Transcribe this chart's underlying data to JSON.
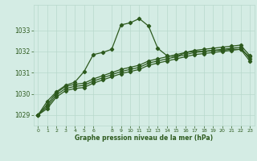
{
  "background_color": "#d4ece4",
  "grid_color": "#b8d8cc",
  "line_color": "#2d5a1e",
  "title": "Graphe pression niveau de la mer (hPa)",
  "xlim": [
    -0.5,
    23.5
  ],
  "ylim": [
    1028.5,
    1034.2
  ],
  "yticks": [
    1029,
    1030,
    1031,
    1032,
    1033
  ],
  "xticks": [
    0,
    1,
    2,
    3,
    4,
    5,
    6,
    8,
    9,
    10,
    11,
    12,
    13,
    14,
    15,
    16,
    17,
    18,
    19,
    20,
    21,
    22,
    23
  ],
  "x": [
    0,
    1,
    2,
    3,
    4,
    5,
    6,
    7,
    8,
    9,
    10,
    11,
    12,
    13,
    14,
    15,
    16,
    17,
    18,
    19,
    20,
    21,
    22,
    23
  ],
  "series_main": [
    1029.0,
    1029.65,
    1030.1,
    1030.4,
    1030.55,
    1031.05,
    1031.85,
    1031.95,
    1032.1,
    1033.25,
    1033.35,
    1033.55,
    1033.2,
    1032.15,
    1031.8,
    1031.75,
    1031.95,
    1032.0,
    1032.0,
    1032.05,
    1032.05,
    1032.1,
    1032.1,
    1031.75
  ],
  "series2": [
    1029.0,
    1029.5,
    1030.05,
    1030.35,
    1030.45,
    1030.5,
    1030.7,
    1030.85,
    1031.0,
    1031.15,
    1031.25,
    1031.35,
    1031.55,
    1031.65,
    1031.75,
    1031.85,
    1031.95,
    1032.05,
    1032.1,
    1032.15,
    1032.2,
    1032.25,
    1032.3,
    1031.8
  ],
  "series3": [
    1029.0,
    1029.4,
    1029.95,
    1030.25,
    1030.35,
    1030.4,
    1030.6,
    1030.75,
    1030.9,
    1031.05,
    1031.15,
    1031.25,
    1031.45,
    1031.55,
    1031.65,
    1031.75,
    1031.85,
    1031.95,
    1032.0,
    1032.05,
    1032.1,
    1032.15,
    1032.2,
    1031.65
  ],
  "series4": [
    1029.0,
    1029.3,
    1029.85,
    1030.15,
    1030.25,
    1030.3,
    1030.5,
    1030.65,
    1030.8,
    1030.95,
    1031.05,
    1031.15,
    1031.35,
    1031.45,
    1031.55,
    1031.65,
    1031.75,
    1031.85,
    1031.9,
    1031.95,
    1032.0,
    1032.05,
    1032.1,
    1031.55
  ]
}
